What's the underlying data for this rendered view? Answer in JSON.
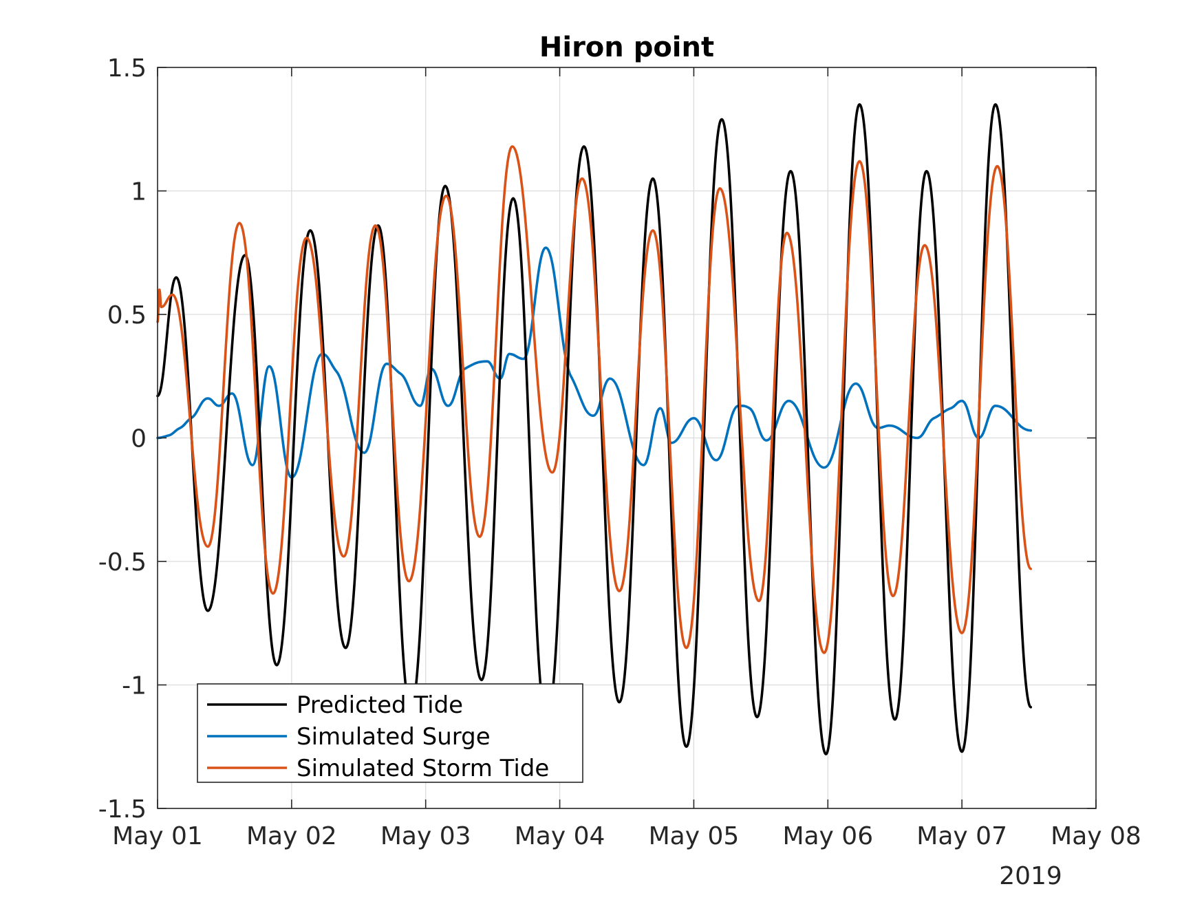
{
  "chart_data": {
    "type": "line",
    "title": "Hiron point",
    "xlabel": "",
    "ylabel": "",
    "x_axis": {
      "type": "date",
      "range": [
        "2019-05-01",
        "2019-05-08"
      ],
      "ticks": [
        "2019-05-01",
        "2019-05-02",
        "2019-05-03",
        "2019-05-04",
        "2019-05-05",
        "2019-05-06",
        "2019-05-07",
        "2019-05-08"
      ],
      "tick_labels": [
        "May 01",
        "May 02",
        "May 03",
        "May 04",
        "May 05",
        "May 06",
        "May 07",
        "May 08"
      ],
      "secondary_label": "2019"
    },
    "y_axis": {
      "range": [
        -1.5,
        1.5
      ],
      "ticks": [
        -1.5,
        -1,
        -0.5,
        0,
        0.5,
        1,
        1.5
      ],
      "tick_labels": [
        "-1.5",
        "-1",
        "-0.5",
        "0",
        "0.5",
        "1",
        "1.5"
      ]
    },
    "grid": true,
    "legend_position": "bottom-left",
    "series": [
      {
        "name": "Predicted Tide",
        "color": "#000000",
        "points": [
          [
            "2019-05-01 00:00",
            0.17
          ],
          [
            "2019-05-01 03:20",
            0.65
          ],
          [
            "2019-05-01 09:00",
            -0.7
          ],
          [
            "2019-05-01 15:40",
            0.74
          ],
          [
            "2019-05-01 21:20",
            -0.92
          ],
          [
            "2019-05-02 03:20",
            0.84
          ],
          [
            "2019-05-02 09:40",
            -0.85
          ],
          [
            "2019-05-02 15:30",
            0.86
          ],
          [
            "2019-05-02 21:20",
            -1.1
          ],
          [
            "2019-05-03 03:30",
            1.02
          ],
          [
            "2019-05-03 10:00",
            -0.98
          ],
          [
            "2019-05-03 15:40",
            0.97
          ],
          [
            "2019-05-03 21:40",
            -1.15
          ],
          [
            "2019-05-04 04:20",
            1.18
          ],
          [
            "2019-05-04 10:40",
            -1.07
          ],
          [
            "2019-05-04 16:40",
            1.05
          ],
          [
            "2019-05-04 22:40",
            -1.25
          ],
          [
            "2019-05-05 05:00",
            1.29
          ],
          [
            "2019-05-05 11:20",
            -1.13
          ],
          [
            "2019-05-05 17:20",
            1.08
          ],
          [
            "2019-05-05 23:40",
            -1.28
          ],
          [
            "2019-05-06 05:40",
            1.35
          ],
          [
            "2019-05-06 12:00",
            -1.14
          ],
          [
            "2019-05-06 17:40",
            1.08
          ],
          [
            "2019-05-07 00:00",
            -1.27
          ],
          [
            "2019-05-07 06:00",
            1.35
          ],
          [
            "2019-05-07 12:20",
            -1.09
          ]
        ]
      },
      {
        "name": "Simulated Surge",
        "color": "#0072BD",
        "points": [
          [
            "2019-05-01 00:00",
            0.0
          ],
          [
            "2019-05-01 02:00",
            0.01
          ],
          [
            "2019-05-01 04:00",
            0.04
          ],
          [
            "2019-05-01 06:00",
            0.08
          ],
          [
            "2019-05-01 09:00",
            0.16
          ],
          [
            "2019-05-01 11:00",
            0.13
          ],
          [
            "2019-05-01 13:20",
            0.18
          ],
          [
            "2019-05-01 17:00",
            -0.11
          ],
          [
            "2019-05-01 20:00",
            0.29
          ],
          [
            "2019-05-02 00:00",
            -0.16
          ],
          [
            "2019-05-02 05:30",
            0.34
          ],
          [
            "2019-05-02 08:00",
            0.27
          ],
          [
            "2019-05-02 13:00",
            -0.06
          ],
          [
            "2019-05-02 17:00",
            0.3
          ],
          [
            "2019-05-02 19:30",
            0.26
          ],
          [
            "2019-05-02 23:00",
            0.13
          ],
          [
            "2019-05-03 01:00",
            0.28
          ],
          [
            "2019-05-03 04:00",
            0.13
          ],
          [
            "2019-05-03 07:00",
            0.28
          ],
          [
            "2019-05-03 11:00",
            0.31
          ],
          [
            "2019-05-03 13:20",
            0.24
          ],
          [
            "2019-05-03 15:00",
            0.34
          ],
          [
            "2019-05-03 17:30",
            0.32
          ],
          [
            "2019-05-03 21:30",
            0.77
          ],
          [
            "2019-05-04 02:00",
            0.25
          ],
          [
            "2019-05-04 06:00",
            0.09
          ],
          [
            "2019-05-04 09:00",
            0.24
          ],
          [
            "2019-05-04 15:00",
            -0.11
          ],
          [
            "2019-05-04 18:00",
            0.12
          ],
          [
            "2019-05-04 20:00",
            -0.02
          ],
          [
            "2019-05-05 00:00",
            0.08
          ],
          [
            "2019-05-05 04:00",
            -0.09
          ],
          [
            "2019-05-05 08:00",
            0.13
          ],
          [
            "2019-05-05 10:00",
            0.12
          ],
          [
            "2019-05-05 13:00",
            -0.01
          ],
          [
            "2019-05-05 17:00",
            0.15
          ],
          [
            "2019-05-05 23:20",
            -0.12
          ],
          [
            "2019-05-06 05:00",
            0.22
          ],
          [
            "2019-05-06 09:00",
            0.04
          ],
          [
            "2019-05-06 11:00",
            0.05
          ],
          [
            "2019-05-06 16:00",
            0.0
          ],
          [
            "2019-05-06 19:00",
            0.08
          ],
          [
            "2019-05-06 22:00",
            0.12
          ],
          [
            "2019-05-07 00:00",
            0.15
          ],
          [
            "2019-05-07 03:00",
            0.0
          ],
          [
            "2019-05-07 06:00",
            0.13
          ],
          [
            "2019-05-07 12:20",
            0.03
          ]
        ]
      },
      {
        "name": "Simulated Storm Tide",
        "color": "#D95319",
        "points": [
          [
            "2019-05-01 00:00",
            0.47
          ],
          [
            "2019-05-01 00:20",
            0.6
          ],
          [
            "2019-05-01 00:40",
            0.53
          ],
          [
            "2019-05-01 02:40",
            0.58
          ],
          [
            "2019-05-01 09:00",
            -0.44
          ],
          [
            "2019-05-01 14:40",
            0.87
          ],
          [
            "2019-05-01 20:40",
            -0.63
          ],
          [
            "2019-05-02 02:40",
            0.81
          ],
          [
            "2019-05-02 09:20",
            -0.48
          ],
          [
            "2019-05-02 15:00",
            0.86
          ],
          [
            "2019-05-02 21:00",
            -0.58
          ],
          [
            "2019-05-03 03:40",
            0.98
          ],
          [
            "2019-05-03 09:40",
            -0.4
          ],
          [
            "2019-05-03 15:30",
            1.18
          ],
          [
            "2019-05-03 22:40",
            -0.14
          ],
          [
            "2019-05-04 04:00",
            1.05
          ],
          [
            "2019-05-04 10:40",
            -0.62
          ],
          [
            "2019-05-04 16:40",
            0.84
          ],
          [
            "2019-05-04 22:40",
            -0.85
          ],
          [
            "2019-05-05 04:40",
            1.01
          ],
          [
            "2019-05-05 11:40",
            -0.66
          ],
          [
            "2019-05-05 16:40",
            0.83
          ],
          [
            "2019-05-05 23:20",
            -0.87
          ],
          [
            "2019-05-06 05:40",
            1.12
          ],
          [
            "2019-05-06 11:40",
            -0.64
          ],
          [
            "2019-05-06 17:20",
            0.78
          ],
          [
            "2019-05-07 00:00",
            -0.79
          ],
          [
            "2019-05-07 06:20",
            1.1
          ],
          [
            "2019-05-07 12:20",
            -0.53
          ]
        ]
      }
    ]
  }
}
